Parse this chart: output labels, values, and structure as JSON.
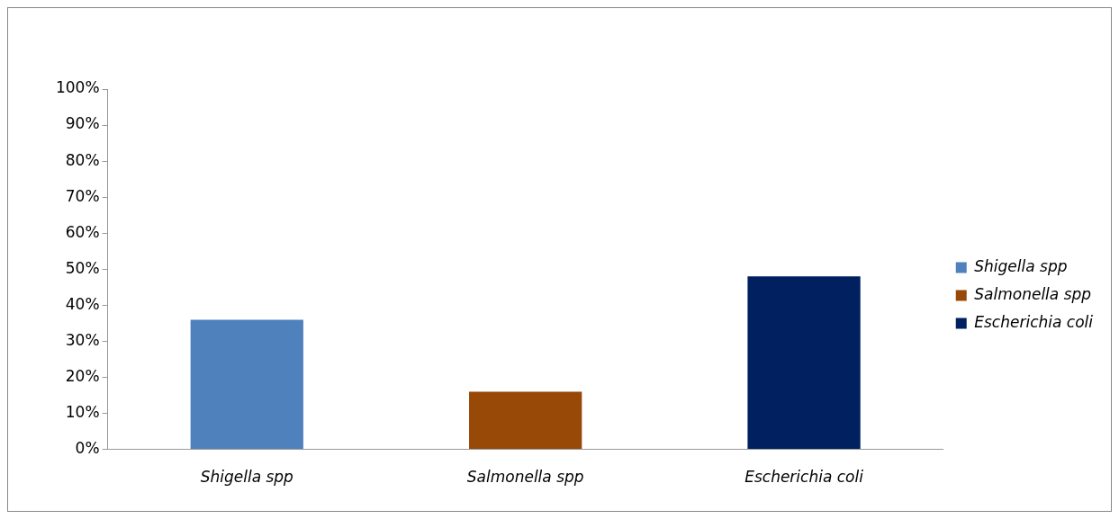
{
  "chart_data": {
    "type": "bar",
    "categories": [
      "Shigella spp",
      "Salmonella spp",
      "Escherichia coli"
    ],
    "series": [
      {
        "name": "Shigella spp",
        "color": "#4f81bd",
        "values": [
          36,
          null,
          null
        ]
      },
      {
        "name": "Salmonella spp",
        "color": "#984807",
        "values": [
          null,
          16,
          null
        ]
      },
      {
        "name": "Escherichia coli",
        "color": "#002060",
        "values": [
          null,
          null,
          48
        ]
      }
    ],
    "ylim": [
      0,
      100
    ],
    "yticks": [
      {
        "value": 0,
        "label": "0%"
      },
      {
        "value": 10,
        "label": "10%"
      },
      {
        "value": 20,
        "label": "20%"
      },
      {
        "value": 30,
        "label": "30%"
      },
      {
        "value": 40,
        "label": "40%"
      },
      {
        "value": 50,
        "label": "50%"
      },
      {
        "value": 60,
        "label": "60%"
      },
      {
        "value": 70,
        "label": "70%"
      },
      {
        "value": 80,
        "label": "80%"
      },
      {
        "value": 90,
        "label": "90%"
      },
      {
        "value": 100,
        "label": "100%"
      }
    ],
    "grid": false,
    "legend": "right"
  }
}
